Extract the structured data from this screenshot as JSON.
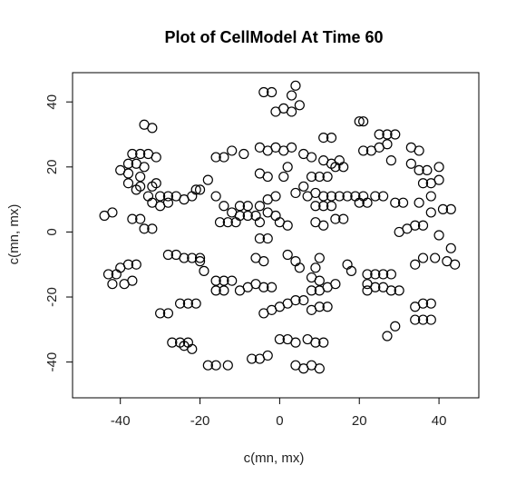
{
  "chart_data": {
    "type": "scatter",
    "title": "Plot of CellModel At Time 60",
    "xlabel": "c(mn, mx)",
    "ylabel": "c(mn, mx)",
    "xlim": [
      -52,
      50
    ],
    "ylim": [
      -51,
      49
    ],
    "xticks": [
      -40,
      -20,
      0,
      20,
      40
    ],
    "yticks": [
      -40,
      -20,
      0,
      20,
      40
    ],
    "grid": false,
    "marker": "open-circle",
    "points": [
      [
        -4,
        43
      ],
      [
        -2,
        43
      ],
      [
        4,
        45
      ],
      [
        3,
        42
      ],
      [
        5,
        39
      ],
      [
        1,
        38
      ],
      [
        -1,
        37
      ],
      [
        3,
        37
      ],
      [
        -34,
        33
      ],
      [
        -32,
        32
      ],
      [
        20,
        34
      ],
      [
        21,
        34
      ],
      [
        -37,
        24
      ],
      [
        -35,
        24
      ],
      [
        -33,
        24
      ],
      [
        -31,
        23
      ],
      [
        -38,
        21
      ],
      [
        -36,
        21
      ],
      [
        -34,
        20
      ],
      [
        -40,
        19
      ],
      [
        -38,
        18
      ],
      [
        -35,
        17
      ],
      [
        -38,
        15
      ],
      [
        -35,
        14
      ],
      [
        -32,
        14
      ],
      [
        -31,
        15
      ],
      [
        -36,
        13
      ],
      [
        -33,
        11
      ],
      [
        -30,
        11
      ],
      [
        -28,
        11
      ],
      [
        -26,
        11
      ],
      [
        -28,
        9
      ],
      [
        -30,
        8
      ],
      [
        -32,
        9
      ],
      [
        -24,
        10
      ],
      [
        -22,
        11
      ],
      [
        -21,
        13
      ],
      [
        -18,
        16
      ],
      [
        -20,
        13
      ],
      [
        -16,
        11
      ],
      [
        -14,
        8
      ],
      [
        -12,
        6
      ],
      [
        -10,
        5
      ],
      [
        -8,
        5
      ],
      [
        -6,
        5
      ],
      [
        -3,
        6
      ],
      [
        -1,
        5
      ],
      [
        -5,
        3
      ],
      [
        -10,
        8
      ],
      [
        -8,
        8
      ],
      [
        -5,
        8
      ],
      [
        -3,
        10
      ],
      [
        -1,
        11
      ],
      [
        -16,
        23
      ],
      [
        -14,
        23
      ],
      [
        -12,
        25
      ],
      [
        -9,
        24
      ],
      [
        -5,
        26
      ],
      [
        -3,
        25
      ],
      [
        -1,
        26
      ],
      [
        1,
        25
      ],
      [
        3,
        26
      ],
      [
        6,
        24
      ],
      [
        8,
        23
      ],
      [
        11,
        22
      ],
      [
        13,
        21
      ],
      [
        15,
        22
      ],
      [
        14,
        20
      ],
      [
        16,
        20
      ],
      [
        12,
        17
      ],
      [
        10,
        17
      ],
      [
        8,
        17
      ],
      [
        2,
        20
      ],
      [
        1,
        17
      ],
      [
        -3,
        17
      ],
      [
        -5,
        18
      ],
      [
        6,
        14
      ],
      [
        4,
        12
      ],
      [
        7,
        11
      ],
      [
        9,
        12
      ],
      [
        11,
        11
      ],
      [
        13,
        11
      ],
      [
        15,
        11
      ],
      [
        17,
        11
      ],
      [
        19,
        11
      ],
      [
        21,
        11
      ],
      [
        24,
        11
      ],
      [
        26,
        11
      ],
      [
        29,
        9
      ],
      [
        31,
        9
      ],
      [
        9,
        8
      ],
      [
        11,
        8
      ],
      [
        13,
        8
      ],
      [
        14,
        4
      ],
      [
        16,
        4
      ],
      [
        9,
        3
      ],
      [
        11,
        2
      ],
      [
        20,
        9
      ],
      [
        22,
        9
      ],
      [
        11,
        29
      ],
      [
        13,
        29
      ],
      [
        21,
        25
      ],
      [
        23,
        25
      ],
      [
        25,
        26
      ],
      [
        27,
        27
      ],
      [
        25,
        30
      ],
      [
        27,
        30
      ],
      [
        29,
        30
      ],
      [
        28,
        22
      ],
      [
        33,
        26
      ],
      [
        35,
        25
      ],
      [
        33,
        21
      ],
      [
        35,
        19
      ],
      [
        37,
        19
      ],
      [
        40,
        20
      ],
      [
        36,
        15
      ],
      [
        38,
        15
      ],
      [
        40,
        16
      ],
      [
        38,
        11
      ],
      [
        35,
        9
      ],
      [
        41,
        7
      ],
      [
        43,
        7
      ],
      [
        38,
        6
      ],
      [
        36,
        2
      ],
      [
        34,
        2
      ],
      [
        32,
        1
      ],
      [
        30,
        0
      ],
      [
        40,
        -1
      ],
      [
        43,
        -5
      ],
      [
        44,
        -10
      ],
      [
        42,
        -9
      ],
      [
        39,
        -8
      ],
      [
        36,
        -8
      ],
      [
        34,
        -10
      ],
      [
        22,
        -13
      ],
      [
        24,
        -13
      ],
      [
        26,
        -13
      ],
      [
        28,
        -13
      ],
      [
        22,
        -16
      ],
      [
        24,
        -17
      ],
      [
        26,
        -17
      ],
      [
        28,
        -18
      ],
      [
        22,
        -18
      ],
      [
        30,
        -18
      ],
      [
        34,
        -23
      ],
      [
        36,
        -22
      ],
      [
        38,
        -22
      ],
      [
        36,
        -27
      ],
      [
        34,
        -27
      ],
      [
        38,
        -27
      ],
      [
        29,
        -29
      ],
      [
        27,
        -32
      ],
      [
        -44,
        5
      ],
      [
        -42,
        6
      ],
      [
        -37,
        4
      ],
      [
        -35,
        4
      ],
      [
        -34,
        1
      ],
      [
        -32,
        1
      ],
      [
        -28,
        -7
      ],
      [
        -26,
        -7
      ],
      [
        -24,
        -8
      ],
      [
        -22,
        -8
      ],
      [
        -20,
        -8
      ],
      [
        -20,
        -9
      ],
      [
        -19,
        -12
      ],
      [
        -16,
        -15
      ],
      [
        -14,
        -15
      ],
      [
        -12,
        -15
      ],
      [
        -14,
        -18
      ],
      [
        -16,
        -18
      ],
      [
        -40,
        -11
      ],
      [
        -38,
        -10
      ],
      [
        -36,
        -10
      ],
      [
        -43,
        -13
      ],
      [
        -41,
        -13
      ],
      [
        -42,
        -16
      ],
      [
        -39,
        -16
      ],
      [
        -37,
        -15
      ],
      [
        -30,
        -25
      ],
      [
        -28,
        -25
      ],
      [
        -25,
        -22
      ],
      [
        -23,
        -22
      ],
      [
        -21,
        -22
      ],
      [
        -27,
        -34
      ],
      [
        -25,
        -34
      ],
      [
        -23,
        -34
      ],
      [
        -22,
        -36
      ],
      [
        -24,
        -35
      ],
      [
        -18,
        -41
      ],
      [
        -16,
        -41
      ],
      [
        -13,
        -41
      ],
      [
        -7,
        -39
      ],
      [
        -5,
        -39
      ],
      [
        -3,
        -38
      ],
      [
        0,
        -33
      ],
      [
        2,
        -33
      ],
      [
        4,
        -34
      ],
      [
        7,
        -33
      ],
      [
        9,
        -34
      ],
      [
        11,
        -34
      ],
      [
        4,
        -41
      ],
      [
        6,
        -42
      ],
      [
        8,
        -41
      ],
      [
        10,
        -42
      ],
      [
        -10,
        -18
      ],
      [
        -8,
        -17
      ],
      [
        -6,
        -16
      ],
      [
        -4,
        -17
      ],
      [
        -2,
        -17
      ],
      [
        -4,
        -25
      ],
      [
        -2,
        -24
      ],
      [
        0,
        -23
      ],
      [
        2,
        -22
      ],
      [
        4,
        -21
      ],
      [
        6,
        -21
      ],
      [
        8,
        -24
      ],
      [
        10,
        -23
      ],
      [
        12,
        -23
      ],
      [
        8,
        -18
      ],
      [
        10,
        -18
      ],
      [
        12,
        -17
      ],
      [
        14,
        -16
      ],
      [
        10,
        -15
      ],
      [
        8,
        -14
      ],
      [
        2,
        -7
      ],
      [
        4,
        -9
      ],
      [
        5,
        -11
      ],
      [
        10,
        -8
      ],
      [
        9,
        -11
      ],
      [
        17,
        -10
      ],
      [
        18,
        -12
      ],
      [
        -5,
        -2
      ],
      [
        -3,
        -2
      ],
      [
        -13,
        3
      ],
      [
        -11,
        3
      ],
      [
        -15,
        3
      ],
      [
        0,
        3
      ],
      [
        2,
        2
      ],
      [
        -6,
        -8
      ],
      [
        -4,
        -9
      ]
    ]
  }
}
